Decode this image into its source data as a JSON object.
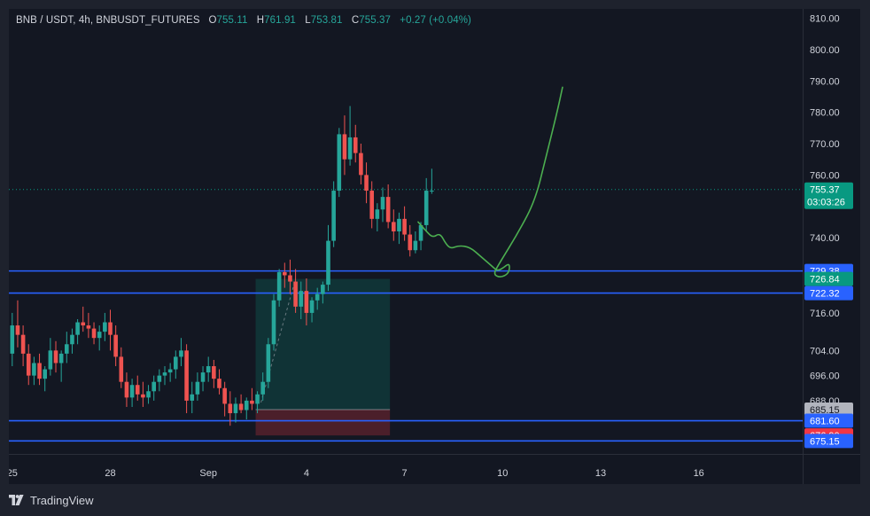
{
  "legend": {
    "symbol": "BNB / USDT, 4h, BNBUSDT_FUTURES",
    "o_label": "O",
    "o_value": "755.11",
    "h_label": "H",
    "h_value": "761.91",
    "l_label": "L",
    "l_value": "753.81",
    "c_label": "C",
    "c_value": "755.37",
    "change": "+0.27 (+0.04%)"
  },
  "footer": {
    "brand": "TradingView"
  },
  "colors": {
    "up": "#26a69a",
    "down": "#ef5350",
    "level_line": "#2962ff",
    "drawing": "#4caf50",
    "background": "#131722",
    "frame": "#1e222d"
  },
  "chart_data": {
    "type": "candlestick",
    "y_axis": {
      "range": [
        671,
        813
      ],
      "ticks": [
        "810.00",
        "800.00",
        "790.00",
        "780.00",
        "770.00",
        "760.00",
        "740.00",
        "716.00",
        "704.00",
        "696.00",
        "688.00"
      ]
    },
    "x_axis": {
      "ticks": [
        {
          "label": "25",
          "index": 0
        },
        {
          "label": "28",
          "index": 18
        },
        {
          "label": "Sep",
          "index": 36
        },
        {
          "label": "4",
          "index": 54
        },
        {
          "label": "7",
          "index": 72
        },
        {
          "label": "10",
          "index": 90
        },
        {
          "label": "13",
          "index": 108
        },
        {
          "label": "16",
          "index": 126
        }
      ]
    },
    "candles": [
      [
        703,
        716,
        699,
        712
      ],
      [
        712,
        720,
        705,
        709
      ],
      [
        709,
        712,
        699,
        703
      ],
      [
        703,
        706,
        693,
        696
      ],
      [
        696,
        702,
        693,
        700
      ],
      [
        700,
        703,
        693,
        695
      ],
      [
        695,
        699,
        691,
        698
      ],
      [
        698,
        708,
        696,
        704
      ],
      [
        704,
        707,
        697,
        700
      ],
      [
        700,
        704,
        694,
        703
      ],
      [
        703,
        710,
        700,
        706
      ],
      [
        706,
        711,
        703,
        709
      ],
      [
        709,
        714,
        706,
        713
      ],
      [
        713,
        718,
        710,
        712
      ],
      [
        712,
        716,
        708,
        711
      ],
      [
        711,
        713,
        706,
        708
      ],
      [
        708,
        712,
        704,
        710
      ],
      [
        710,
        716,
        707,
        713
      ],
      [
        713,
        717,
        704,
        709
      ],
      [
        709,
        712,
        699,
        702
      ],
      [
        702,
        705,
        692,
        694
      ],
      [
        694,
        697,
        686,
        689
      ],
      [
        689,
        695,
        686,
        693
      ],
      [
        693,
        696,
        688,
        690
      ],
      [
        690,
        694,
        686,
        689
      ],
      [
        689,
        693,
        687,
        691
      ],
      [
        691,
        696,
        688,
        694
      ],
      [
        694,
        698,
        691,
        696
      ],
      [
        696,
        699,
        693,
        697
      ],
      [
        697,
        700,
        694,
        698
      ],
      [
        698,
        704,
        695,
        702
      ],
      [
        702,
        708,
        699,
        704
      ],
      [
        704,
        706,
        684,
        688
      ],
      [
        688,
        694,
        684,
        690
      ],
      [
        690,
        697,
        688,
        694
      ],
      [
        694,
        699,
        691,
        697
      ],
      [
        697,
        702,
        694,
        699
      ],
      [
        699,
        701,
        692,
        695
      ],
      [
        695,
        698,
        690,
        692
      ],
      [
        692,
        694,
        683,
        687
      ],
      [
        687,
        691,
        680,
        684
      ],
      [
        684,
        689,
        681,
        687
      ],
      [
        687,
        690,
        684,
        685
      ],
      [
        685,
        689,
        682,
        688
      ],
      [
        688,
        692,
        685,
        687
      ],
      [
        687,
        691,
        684,
        690
      ],
      [
        690,
        697,
        688,
        694
      ],
      [
        694,
        708,
        692,
        706
      ],
      [
        706,
        722,
        704,
        720
      ],
      [
        720,
        730,
        718,
        729
      ],
      [
        729,
        732,
        724,
        728
      ],
      [
        728,
        733,
        722,
        726
      ],
      [
        726,
        730,
        716,
        718
      ],
      [
        718,
        726,
        714,
        723
      ],
      [
        723,
        727,
        712,
        716
      ],
      [
        716,
        721,
        713,
        720
      ],
      [
        720,
        724,
        717,
        722
      ],
      [
        722,
        726,
        719,
        725
      ],
      [
        725,
        744,
        723,
        739
      ],
      [
        739,
        758,
        737,
        755
      ],
      [
        755,
        775,
        753,
        773
      ],
      [
        773,
        779,
        760,
        765
      ],
      [
        765,
        782,
        763,
        772
      ],
      [
        772,
        776,
        764,
        767
      ],
      [
        767,
        770,
        757,
        760
      ],
      [
        760,
        764,
        751,
        755
      ],
      [
        755,
        758,
        743,
        746
      ],
      [
        746,
        751,
        742,
        749
      ],
      [
        749,
        756,
        745,
        753
      ],
      [
        753,
        757,
        743,
        745
      ],
      [
        745,
        749,
        739,
        742
      ],
      [
        742,
        748,
        738,
        746
      ],
      [
        746,
        750,
        739,
        741
      ],
      [
        741,
        744,
        734,
        736
      ],
      [
        736,
        742,
        735,
        739
      ],
      [
        739,
        745,
        736,
        744
      ],
      [
        744,
        759,
        742,
        755
      ],
      [
        755,
        762,
        754,
        755
      ]
    ],
    "current_price": 755.37,
    "countdown": "03:03:26",
    "horizontal_levels": [
      729.38,
      722.32,
      681.6,
      675.15
    ],
    "price_labels": [
      {
        "price": 755.37,
        "text": "755.37",
        "subtext": "03:03:26",
        "bg": "#089981"
      },
      {
        "price": 729.38,
        "text": "729.38",
        "bg": "#2962ff"
      },
      {
        "price": 726.84,
        "text": "726.84",
        "bg": "#089981"
      },
      {
        "price": 722.32,
        "text": "722.32",
        "bg": "#2962ff"
      },
      {
        "price": 685.15,
        "text": "685.15",
        "bg": "#b2b5be",
        "fg": "#131722"
      },
      {
        "price": 681.6,
        "text": "681.60",
        "bg": "#2962ff"
      },
      {
        "price": 676.9,
        "text": "676.90",
        "bg": "#f23645"
      },
      {
        "price": 675.15,
        "text": "675.15",
        "bg": "#2962ff"
      }
    ],
    "position_tool": {
      "start_index": 45,
      "end_index": 69,
      "entry": 685.15,
      "target": 726.84,
      "stop": 676.9
    },
    "forecast_path": [
      [
        74.5,
        745
      ],
      [
        76,
        742
      ],
      [
        77.2,
        740
      ],
      [
        78.5,
        741.5
      ],
      [
        79.6,
        738
      ],
      [
        80.5,
        736.5
      ],
      [
        82,
        737.5
      ],
      [
        84,
        737
      ],
      [
        86,
        734
      ],
      [
        88,
        731
      ],
      [
        89,
        729.4
      ],
      [
        90,
        730.2
      ],
      [
        91.3,
        732
      ],
      [
        91.2,
        728.6
      ],
      [
        89.5,
        727.2
      ],
      [
        88.3,
        728.4
      ],
      [
        89.3,
        731.5
      ],
      [
        93,
        742
      ],
      [
        96,
        752
      ],
      [
        98,
        766
      ],
      [
        100,
        780
      ],
      [
        101,
        788
      ]
    ]
  }
}
